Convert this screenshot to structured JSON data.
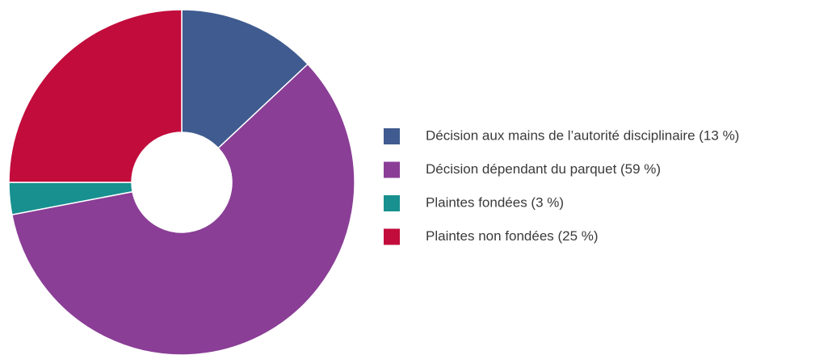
{
  "chart_data": {
    "type": "donut",
    "categories": [
      "Décision aux mains de l’autorité disciplinaire (13 %)",
      "Décision dépendant du parquet (59 %)",
      "Plaintes fondées (3 %)",
      "Plaintes non fondées (25 %)"
    ],
    "values": [
      13,
      59,
      3,
      25
    ],
    "colors": [
      "#3f5b8f",
      "#8a3e96",
      "#17908f",
      "#c20c3c"
    ],
    "legend": "right"
  }
}
